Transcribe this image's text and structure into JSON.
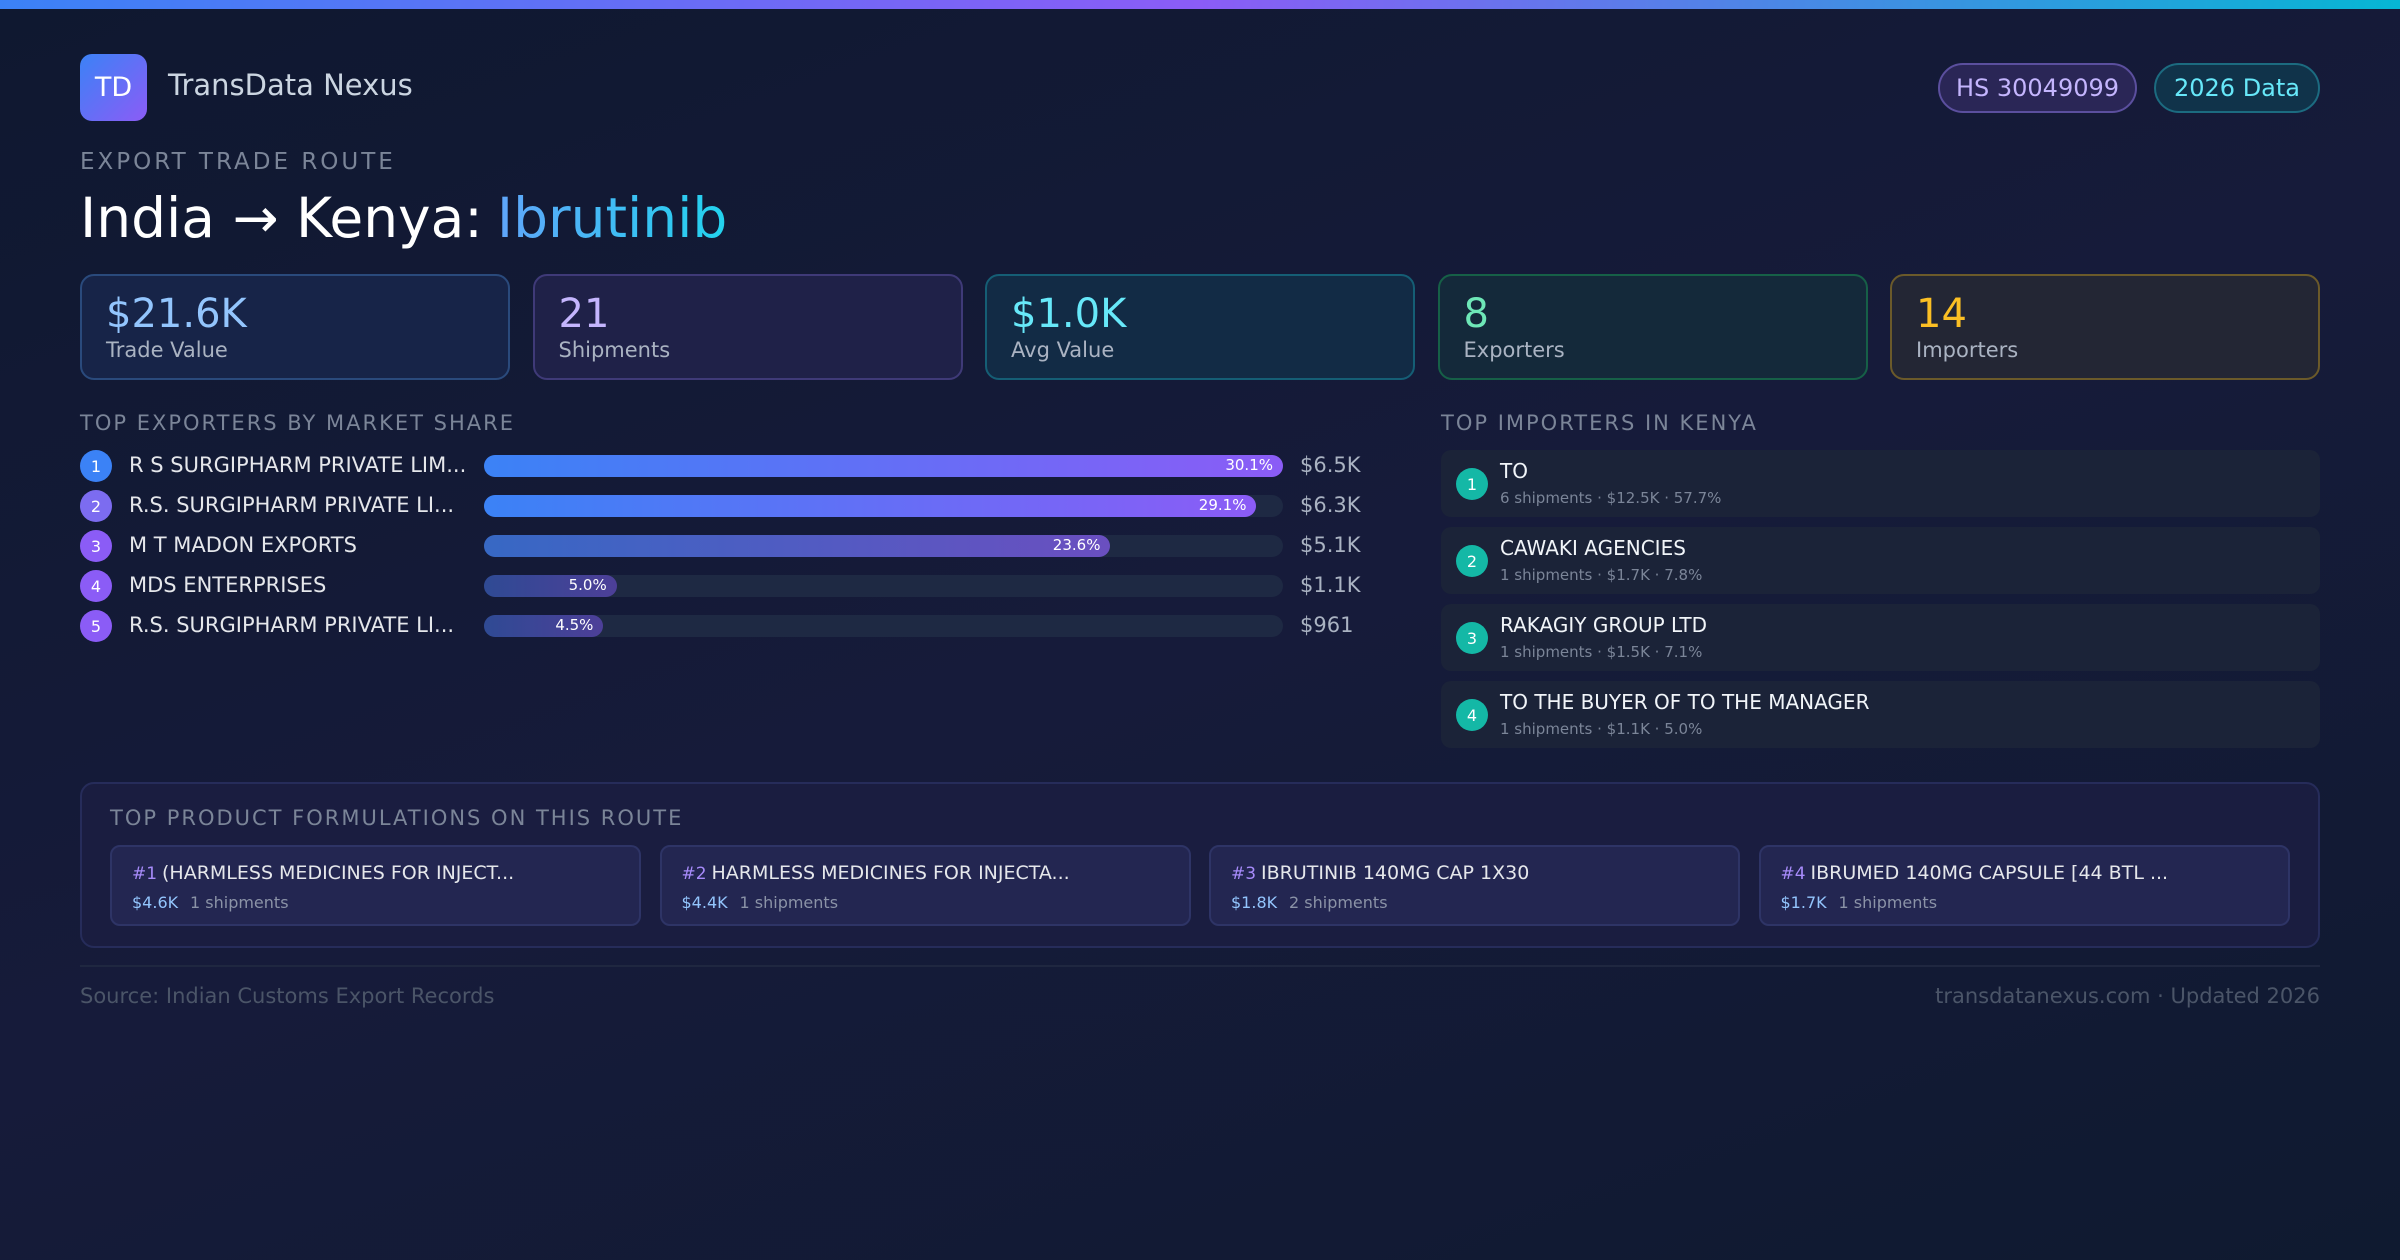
{
  "header": {
    "logo": "TD",
    "brand": "TransData Nexus",
    "badges": [
      "HS 30049099",
      "2026 Data"
    ]
  },
  "route": {
    "eyebrow": "EXPORT TRADE ROUTE",
    "title": "India → Kenya:",
    "product": "Ibrutinib"
  },
  "kpis": [
    {
      "value": "$21.6K",
      "label": "Trade Value"
    },
    {
      "value": "21",
      "label": "Shipments"
    },
    {
      "value": "$1.0K",
      "label": "Avg Value"
    },
    {
      "value": "8",
      "label": "Exporters"
    },
    {
      "value": "14",
      "label": "Importers"
    }
  ],
  "exporters": {
    "heading": "TOP EXPORTERS BY MARKET SHARE",
    "rows": [
      {
        "rank": 1,
        "name": "R S SURGIPHARM PRIVATE LIM...",
        "share": 30.1,
        "share_label": "30.1%",
        "value": "$6.5K"
      },
      {
        "rank": 2,
        "name": "R.S. SURGIPHARM PRIVATE LI...",
        "share": 29.1,
        "share_label": "29.1%",
        "value": "$6.3K"
      },
      {
        "rank": 3,
        "name": "M T MADON EXPORTS",
        "share": 23.6,
        "share_label": "23.6%",
        "value": "$5.1K"
      },
      {
        "rank": 4,
        "name": "MDS ENTERPRISES",
        "share": 5.0,
        "share_label": "5.0%",
        "value": "$1.1K"
      },
      {
        "rank": 5,
        "name": "R.S. SURGIPHARM PRIVATE LI...",
        "share": 4.5,
        "share_label": "4.5%",
        "value": "$961"
      }
    ]
  },
  "importers": {
    "heading": "TOP IMPORTERS IN KENYA",
    "rows": [
      {
        "rank": 1,
        "name": "TO",
        "details": "6 shipments · $12.5K · 57.7%"
      },
      {
        "rank": 2,
        "name": "CAWAKI AGENCIES",
        "details": "1 shipments · $1.7K · 7.8%"
      },
      {
        "rank": 3,
        "name": "RAKAGIY GROUP LTD",
        "details": "1 shipments · $1.5K · 7.1%"
      },
      {
        "rank": 4,
        "name": "TO THE BUYER OF TO THE MANAGER",
        "details": "1 shipments · $1.1K · 5.0%"
      }
    ]
  },
  "formulations": {
    "heading": "TOP PRODUCT FORMULATIONS ON THIS ROUTE",
    "items": [
      {
        "rank": "#1",
        "name": "(HARMLESS MEDICINES FOR INJECT...",
        "value": "$4.6K",
        "shipments": "1 shipments"
      },
      {
        "rank": "#2",
        "name": "HARMLESS MEDICINES FOR INJECTA...",
        "value": "$4.4K",
        "shipments": "1 shipments"
      },
      {
        "rank": "#3",
        "name": "IBRUTINIB 140MG CAP 1X30",
        "value": "$1.8K",
        "shipments": "2 shipments"
      },
      {
        "rank": "#4",
        "name": "IBRUMED 140MG CAPSULE [44 BTL ...",
        "value": "$1.7K",
        "shipments": "1 shipments"
      }
    ]
  },
  "footer": {
    "source": "Source: Indian Customs Export Records",
    "site": "transdatanexus.com · Updated 2026"
  }
}
